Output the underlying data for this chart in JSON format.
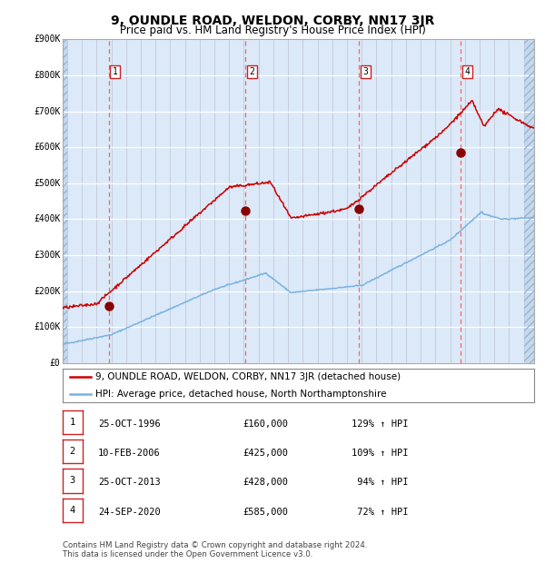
{
  "title": "9, OUNDLE ROAD, WELDON, CORBY, NN17 3JR",
  "subtitle": "Price paid vs. HM Land Registry's House Price Index (HPI)",
  "title_fontsize": 10,
  "subtitle_fontsize": 8.5,
  "plot_bg": "#dce9f8",
  "red_line_color": "#cc0000",
  "blue_line_color": "#7ab3e0",
  "sale_marker_color": "#880000",
  "vline_color": "#ff5555",
  "ylim": [
    0,
    900000
  ],
  "yticks": [
    0,
    100000,
    200000,
    300000,
    400000,
    500000,
    600000,
    700000,
    800000,
    900000
  ],
  "ytick_labels": [
    "£0",
    "£100K",
    "£200K",
    "£300K",
    "£400K",
    "£500K",
    "£600K",
    "£700K",
    "£800K",
    "£900K"
  ],
  "xlim_start": 1993.7,
  "xlim_end": 2025.7,
  "xticks": [
    1994,
    1995,
    1996,
    1997,
    1998,
    1999,
    2000,
    2001,
    2002,
    2003,
    2004,
    2005,
    2006,
    2007,
    2008,
    2009,
    2010,
    2011,
    2012,
    2013,
    2014,
    2015,
    2016,
    2017,
    2018,
    2019,
    2020,
    2021,
    2022,
    2023,
    2024,
    2025
  ],
  "sales": [
    {
      "num": 1,
      "date": "25-OCT-1996",
      "year": 1996.82,
      "price": 160000,
      "pct": "129%",
      "dir": "↑"
    },
    {
      "num": 2,
      "date": "10-FEB-2006",
      "year": 2006.12,
      "price": 425000,
      "pct": "109%",
      "dir": "↑"
    },
    {
      "num": 3,
      "date": "25-OCT-2013",
      "year": 2013.82,
      "price": 428000,
      "pct": "94%",
      "dir": "↑"
    },
    {
      "num": 4,
      "date": "24-SEP-2020",
      "year": 2020.73,
      "price": 585000,
      "pct": "72%",
      "dir": "↑"
    }
  ],
  "legend_label_red": "9, OUNDLE ROAD, WELDON, CORBY, NN17 3JR (detached house)",
  "legend_label_blue": "HPI: Average price, detached house, North Northamptonshire",
  "footnote": "Contains HM Land Registry data © Crown copyright and database right 2024.\nThis data is licensed under the Open Government Licence v3.0.",
  "table_rows": [
    [
      "1",
      "25-OCT-1996",
      "£160,000",
      "129% ↑ HPI"
    ],
    [
      "2",
      "10-FEB-2006",
      "£425,000",
      "109% ↑ HPI"
    ],
    [
      "3",
      "25-OCT-2013",
      "£428,000",
      " 94% ↑ HPI"
    ],
    [
      "4",
      "24-SEP-2020",
      "£585,000",
      " 72% ↑ HPI"
    ]
  ]
}
